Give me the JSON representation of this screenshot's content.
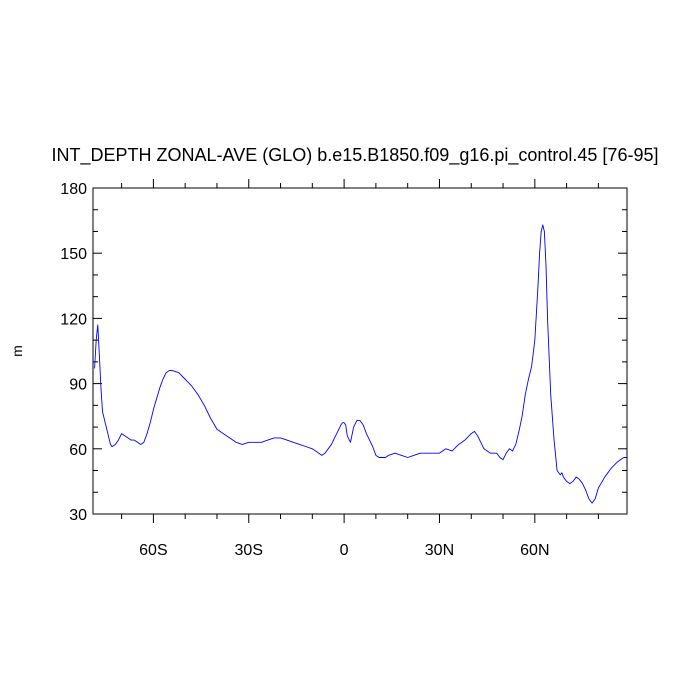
{
  "chart_data": {
    "type": "line",
    "title": "INT_DEPTH ZONAL-AVE (GLO) b.e15.B1850.f09_g16.pi_control.45 [76-95]",
    "xlabel": "",
    "ylabel": "m",
    "xlim": [
      -79,
      89
    ],
    "ylim": [
      30,
      180
    ],
    "grid": false,
    "x_ticks": [
      {
        "value": -60,
        "label": "60S"
      },
      {
        "value": -30,
        "label": "30S"
      },
      {
        "value": 0,
        "label": "0"
      },
      {
        "value": 30,
        "label": "30N"
      },
      {
        "value": 60,
        "label": "60N"
      }
    ],
    "y_ticks": [
      {
        "value": 30,
        "label": "30"
      },
      {
        "value": 60,
        "label": "60"
      },
      {
        "value": 90,
        "label": "90"
      },
      {
        "value": 120,
        "label": "120"
      },
      {
        "value": 150,
        "label": "150"
      },
      {
        "value": 180,
        "label": "180"
      }
    ],
    "series": [
      {
        "color": "#0000ff",
        "x": [
          -78.5,
          -78,
          -77.5,
          -77,
          -76.5,
          -76,
          -75.5,
          -75,
          -74,
          -73.5,
          -73,
          -72,
          -71,
          -70,
          -69,
          -68,
          -67,
          -66,
          -65,
          -64,
          -63,
          -62,
          -61,
          -60,
          -59,
          -58,
          -57,
          -56,
          -55,
          -54,
          -52,
          -50,
          -48,
          -46,
          -44,
          -42,
          -40,
          -38,
          -36,
          -34,
          -32,
          -30,
          -28,
          -26,
          -24,
          -22,
          -20,
          -18,
          -16,
          -14,
          -12,
          -10,
          -8,
          -7,
          -6,
          -5,
          -4,
          -3,
          -2,
          -1,
          -0.5,
          0,
          0.5,
          1,
          2,
          3,
          4,
          5,
          6,
          7,
          8,
          9,
          10,
          11,
          12,
          13,
          14,
          16,
          18,
          20,
          22,
          24,
          26,
          28,
          30,
          32,
          34,
          36,
          38,
          40,
          41,
          42,
          44,
          46,
          48,
          49,
          50,
          51,
          52,
          53,
          54,
          55,
          56,
          57,
          58,
          59,
          60,
          61,
          61.5,
          62,
          62.5,
          63,
          63.5,
          64,
          65,
          66,
          67,
          68,
          68.5,
          69,
          70,
          71,
          72,
          73,
          74,
          75,
          76,
          77,
          78,
          79,
          80,
          82,
          84,
          86,
          88,
          89
        ],
        "values": [
          97,
          110,
          117,
          103,
          88,
          77,
          74,
          71,
          65,
          62,
          61,
          62,
          64,
          67,
          66,
          65,
          64,
          64,
          63,
          62,
          63,
          67,
          72,
          78,
          83,
          88,
          92,
          95,
          96,
          96,
          95,
          92,
          89,
          85,
          80,
          74,
          69,
          67,
          65,
          63,
          62,
          63,
          63,
          63,
          64,
          65,
          65,
          64,
          63,
          62,
          61,
          60,
          58,
          57,
          58,
          60,
          62,
          65,
          68,
          71,
          72,
          72,
          71,
          66,
          63,
          70,
          73,
          73,
          71,
          67,
          64,
          61,
          57,
          56,
          56,
          56,
          57,
          58,
          57,
          56,
          57,
          58,
          58,
          58,
          58,
          60,
          59,
          62,
          64,
          67,
          68,
          66,
          60,
          58,
          58,
          56,
          55,
          58,
          60,
          59,
          62,
          68,
          75,
          85,
          92,
          98,
          110,
          135,
          150,
          160,
          163,
          160,
          145,
          120,
          85,
          65,
          50,
          48,
          49,
          47,
          45,
          44,
          45,
          47,
          46,
          44,
          41,
          37,
          35,
          37,
          42,
          47,
          51,
          54,
          56,
          56
        ]
      }
    ]
  }
}
